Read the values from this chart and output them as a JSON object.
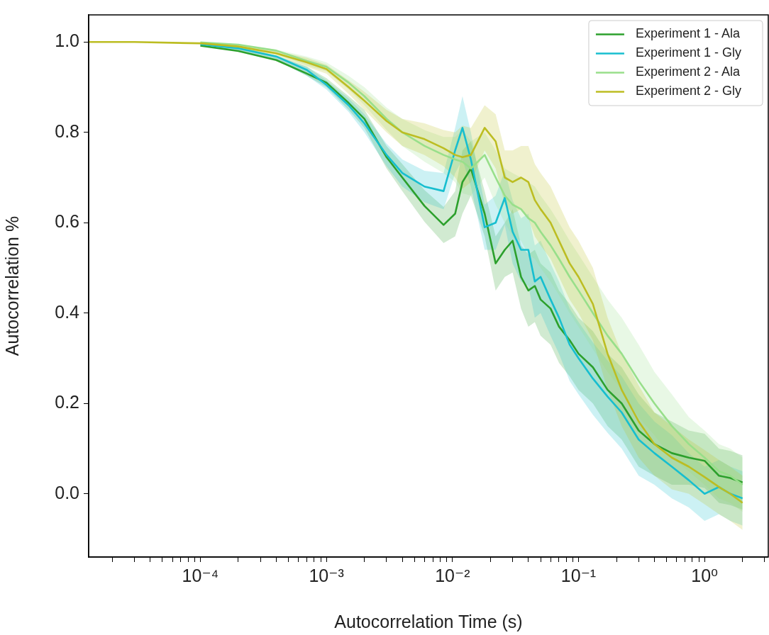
{
  "chart_data": {
    "type": "line",
    "xlabel": "Autocorrelation Time (s)",
    "ylabel": "Autocorrelation %",
    "log": "x",
    "grid": false,
    "legend": "top right",
    "marker": "none",
    "line_style": "solid",
    "xlim": [
      1.3e-05,
      3.2
    ],
    "ylim": [
      -0.14,
      1.06
    ],
    "xticks": [
      {
        "value": 2e-05,
        "label": null
      },
      {
        "value": 3e-05,
        "label": null
      },
      {
        "value": 4e-05,
        "label": null
      },
      {
        "value": 5e-05,
        "label": null
      },
      {
        "value": 6e-05,
        "label": null
      },
      {
        "value": 7e-05,
        "label": null
      },
      {
        "value": 8e-05,
        "label": null
      },
      {
        "value": 9e-05,
        "label": null
      },
      {
        "value": 0.0001,
        "label": "10⁻⁴"
      },
      {
        "value": 0.0002,
        "label": null
      },
      {
        "value": 0.0003,
        "label": null
      },
      {
        "value": 0.0004,
        "label": null
      },
      {
        "value": 0.0005,
        "label": null
      },
      {
        "value": 0.0006,
        "label": null
      },
      {
        "value": 0.0007,
        "label": null
      },
      {
        "value": 0.0008,
        "label": null
      },
      {
        "value": 0.0009,
        "label": null
      },
      {
        "value": 0.001,
        "label": "10⁻³"
      },
      {
        "value": 0.002,
        "label": null
      },
      {
        "value": 0.003,
        "label": null
      },
      {
        "value": 0.004,
        "label": null
      },
      {
        "value": 0.005,
        "label": null
      },
      {
        "value": 0.006,
        "label": null
      },
      {
        "value": 0.007,
        "label": null
      },
      {
        "value": 0.008,
        "label": null
      },
      {
        "value": 0.009,
        "label": null
      },
      {
        "value": 0.01,
        "label": "10⁻²"
      },
      {
        "value": 0.02,
        "label": null
      },
      {
        "value": 0.03,
        "label": null
      },
      {
        "value": 0.04,
        "label": null
      },
      {
        "value": 0.05,
        "label": null
      },
      {
        "value": 0.06,
        "label": null
      },
      {
        "value": 0.07,
        "label": null
      },
      {
        "value": 0.08,
        "label": null
      },
      {
        "value": 0.09,
        "label": null
      },
      {
        "value": 0.1,
        "label": "10⁻¹"
      },
      {
        "value": 0.2,
        "label": null
      },
      {
        "value": 0.3,
        "label": null
      },
      {
        "value": 0.4,
        "label": null
      },
      {
        "value": 0.5,
        "label": null
      },
      {
        "value": 0.6,
        "label": null
      },
      {
        "value": 0.7,
        "label": null
      },
      {
        "value": 0.8,
        "label": null
      },
      {
        "value": 0.9,
        "label": null
      },
      {
        "value": 1,
        "label": "10⁰"
      },
      {
        "value": 2,
        "label": null
      },
      {
        "value": 3,
        "label": null
      }
    ],
    "yticks": [
      {
        "value": 0,
        "label": "0.0"
      },
      0.2,
      0.4,
      0.6,
      0.8,
      {
        "value": 1,
        "label": "1.0"
      }
    ],
    "x": [
      1.3e-05,
      3e-05,
      0.0001,
      0.0002,
      0.0004,
      0.0007,
      0.001,
      0.0015,
      0.002,
      0.003,
      0.004,
      0.006,
      0.0085,
      0.0105,
      0.012,
      0.014,
      0.018,
      0.022,
      0.026,
      0.03,
      0.035,
      0.04,
      0.045,
      0.05,
      0.06,
      0.07,
      0.085,
      0.1,
      0.13,
      0.17,
      0.22,
      0.3,
      0.4,
      0.55,
      0.75,
      1.0,
      1.3,
      1.6,
      2.0
    ],
    "series": [
      {
        "name": "Experiment 1 - Ala",
        "color": "#2ca02c",
        "values": [
          null,
          null,
          0.992,
          0.98,
          0.96,
          0.93,
          0.91,
          0.865,
          0.83,
          0.745,
          0.7,
          0.637,
          0.595,
          0.62,
          0.69,
          0.72,
          0.62,
          0.51,
          0.54,
          0.56,
          0.48,
          0.45,
          0.46,
          0.43,
          0.41,
          0.37,
          0.34,
          0.31,
          0.28,
          0.23,
          0.2,
          0.14,
          0.11,
          0.09,
          0.08,
          0.073,
          0.04,
          0.035,
          0.025
        ],
        "lower": [
          1.0,
          1.0,
          0.995,
          0.98,
          0.96,
          0.925,
          0.9,
          0.85,
          0.81,
          0.72,
          0.67,
          0.602,
          0.555,
          0.57,
          0.62,
          0.66,
          0.57,
          0.45,
          0.48,
          0.49,
          0.41,
          0.37,
          0.38,
          0.35,
          0.33,
          0.29,
          0.26,
          0.23,
          0.2,
          0.15,
          0.12,
          0.06,
          0.04,
          0.02,
          0.02,
          0.013,
          -0.02,
          -0.025,
          -0.035
        ],
        "upper": [
          1.0,
          1.0,
          0.995,
          0.99,
          0.97,
          0.945,
          0.92,
          0.88,
          0.85,
          0.77,
          0.73,
          0.672,
          0.635,
          0.67,
          0.76,
          0.78,
          0.67,
          0.57,
          0.6,
          0.63,
          0.55,
          0.53,
          0.54,
          0.51,
          0.49,
          0.45,
          0.42,
          0.39,
          0.36,
          0.31,
          0.28,
          0.22,
          0.18,
          0.16,
          0.14,
          0.133,
          0.1,
          0.095,
          0.085
        ]
      },
      {
        "name": "Experiment 1 - Gly",
        "color": "#17becf",
        "values": [
          null,
          null,
          0.995,
          0.986,
          0.968,
          0.938,
          0.905,
          0.86,
          0.82,
          0.75,
          0.71,
          0.68,
          0.67,
          0.76,
          0.81,
          0.74,
          0.59,
          0.6,
          0.655,
          0.58,
          0.54,
          0.54,
          0.47,
          0.48,
          0.43,
          0.39,
          0.33,
          0.3,
          0.255,
          0.215,
          0.18,
          0.12,
          0.09,
          0.06,
          0.03,
          0.0,
          0.015,
          0.0,
          -0.01
        ],
        "lower": [
          1.0,
          1.0,
          0.995,
          0.98,
          0.96,
          0.925,
          0.895,
          0.845,
          0.8,
          0.725,
          0.68,
          0.645,
          0.63,
          0.71,
          0.74,
          0.68,
          0.54,
          0.54,
          0.595,
          0.51,
          0.47,
          0.46,
          0.39,
          0.4,
          0.35,
          0.31,
          0.25,
          0.22,
          0.175,
          0.135,
          0.1,
          0.04,
          0.02,
          -0.01,
          -0.03,
          -0.06,
          -0.045,
          -0.06,
          -0.07
        ],
        "upper": [
          1.0,
          1.0,
          0.995,
          0.99,
          0.97,
          0.945,
          0.915,
          0.875,
          0.84,
          0.775,
          0.74,
          0.715,
          0.71,
          0.81,
          0.88,
          0.8,
          0.64,
          0.66,
          0.715,
          0.65,
          0.61,
          0.62,
          0.55,
          0.56,
          0.51,
          0.47,
          0.41,
          0.38,
          0.335,
          0.295,
          0.26,
          0.2,
          0.16,
          0.13,
          0.09,
          0.06,
          0.075,
          0.06,
          0.05
        ]
      },
      {
        "name": "Experiment 2 - Ala",
        "color": "#98df8a",
        "values": [
          null,
          null,
          0.999,
          0.994,
          0.981,
          0.958,
          0.945,
          0.91,
          0.88,
          0.83,
          0.8,
          0.77,
          0.75,
          0.74,
          0.735,
          0.72,
          0.75,
          0.7,
          0.66,
          0.64,
          0.63,
          0.61,
          0.6,
          0.58,
          0.55,
          0.52,
          0.48,
          0.45,
          0.4,
          0.35,
          0.31,
          0.25,
          0.2,
          0.15,
          0.11,
          0.08,
          0.05,
          0.04,
          0.02
        ],
        "lower": [
          1.0,
          1.0,
          0.997,
          0.985,
          0.973,
          0.948,
          0.935,
          0.895,
          0.86,
          0.805,
          0.77,
          0.735,
          0.71,
          0.69,
          0.665,
          0.66,
          0.7,
          0.64,
          0.6,
          0.57,
          0.56,
          0.53,
          0.52,
          0.5,
          0.47,
          0.44,
          0.4,
          0.37,
          0.32,
          0.27,
          0.23,
          0.17,
          0.13,
          0.08,
          0.05,
          0.02,
          -0.01,
          -0.02,
          -0.04
        ],
        "upper": [
          1.0,
          1.0,
          0.997,
          0.995,
          0.983,
          0.968,
          0.955,
          0.925,
          0.9,
          0.855,
          0.83,
          0.805,
          0.79,
          0.79,
          0.805,
          0.78,
          0.8,
          0.76,
          0.72,
          0.71,
          0.7,
          0.69,
          0.68,
          0.66,
          0.63,
          0.6,
          0.56,
          0.53,
          0.48,
          0.43,
          0.39,
          0.33,
          0.27,
          0.22,
          0.17,
          0.14,
          0.11,
          0.1,
          0.08
        ]
      },
      {
        "name": "Experiment 2 - Gly",
        "color": "#bcbd22",
        "values": [
          1.0,
          1.0,
          0.997,
          0.99,
          0.975,
          0.955,
          0.94,
          0.9,
          0.87,
          0.825,
          0.8,
          0.785,
          0.765,
          0.75,
          0.745,
          0.75,
          0.81,
          0.78,
          0.7,
          0.69,
          0.7,
          0.69,
          0.65,
          0.63,
          0.6,
          0.56,
          0.51,
          0.48,
          0.42,
          0.31,
          0.23,
          0.16,
          0.11,
          0.08,
          0.06,
          0.037,
          0.015,
          0.0,
          -0.02
        ],
        "lower": [
          1.0,
          1.0,
          0.997,
          0.985,
          0.97,
          0.945,
          0.93,
          0.885,
          0.85,
          0.8,
          0.77,
          0.75,
          0.725,
          0.7,
          0.675,
          0.69,
          0.76,
          0.72,
          0.64,
          0.62,
          0.63,
          0.61,
          0.57,
          0.55,
          0.52,
          0.48,
          0.43,
          0.4,
          0.34,
          0.23,
          0.15,
          0.08,
          0.04,
          0.01,
          0.0,
          -0.023,
          -0.045,
          -0.06,
          -0.08
        ],
        "upper": [
          1.0,
          1.0,
          0.997,
          0.995,
          0.98,
          0.965,
          0.95,
          0.915,
          0.89,
          0.85,
          0.83,
          0.82,
          0.805,
          0.8,
          0.815,
          0.81,
          0.86,
          0.84,
          0.76,
          0.76,
          0.77,
          0.77,
          0.73,
          0.71,
          0.68,
          0.64,
          0.59,
          0.56,
          0.5,
          0.39,
          0.31,
          0.24,
          0.18,
          0.15,
          0.12,
          0.097,
          0.075,
          0.06,
          0.04
        ]
      }
    ]
  }
}
